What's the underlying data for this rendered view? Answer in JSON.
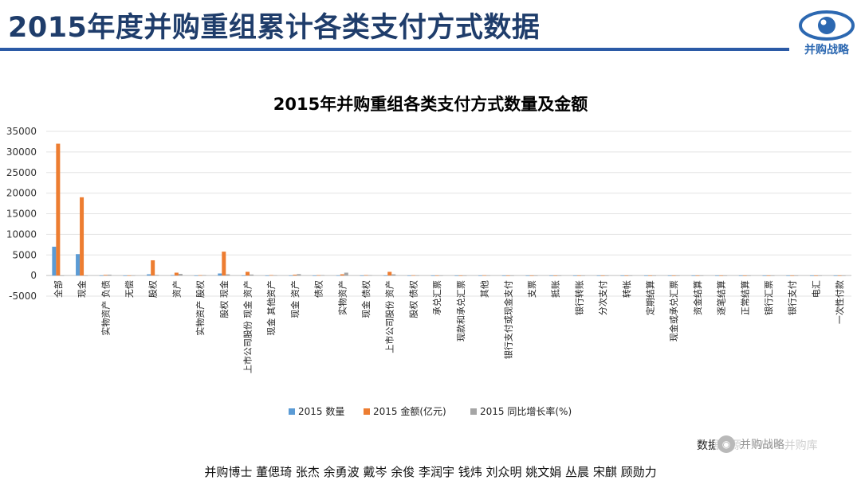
{
  "slide": {
    "title": "2015年度并购重组累计各类支付方式数据",
    "logo_text": "并购战略",
    "source_text": "数据来源：Wind 并购库",
    "authors": "并购博士 董偲琦 张杰 余勇波 戴岑 余俊 李润宇 钱炜 刘众明 姚文娟 丛晨 宋麒 顾勋力",
    "wechat_name": "并购战略"
  },
  "colors": {
    "title": "#1f3d6b",
    "rule": "#2b5aa6",
    "count": "#5b9bd5",
    "amount": "#ed7d31",
    "growth": "#a5a5a5"
  },
  "chart_data": {
    "type": "bar",
    "title": "2015年并购重组各类支付方式数量及金额",
    "xlabel": "",
    "ylabel": "",
    "ylim": [
      -5000,
      35000
    ],
    "yticks": [
      -5000,
      0,
      5000,
      10000,
      15000,
      20000,
      25000,
      30000,
      35000
    ],
    "grid": true,
    "legend_position": "bottom",
    "categories": [
      "全部",
      "现金",
      "实物资产 负债",
      "无偿",
      "股权",
      "资产",
      "实物资产 股权",
      "股权 现金",
      "上市公司股份 现金 资产",
      "现金 其他资产",
      "现金 资产",
      "债权",
      "实物资产",
      "现金 债权",
      "上市公司股份 资产",
      "股权 债权",
      "承兑汇票",
      "现款和承兑汇票",
      "其他",
      "银行支付或现金支付",
      "支票",
      "抵账",
      "银行转账",
      "分次支付",
      "转帐",
      "定期结算",
      "现金或承兑汇票",
      "资金结算",
      "逐笔结算",
      "正常结算",
      "银行汇票",
      "银行支付",
      "电汇",
      "一次性付款"
    ],
    "series": [
      {
        "name": "2015 数量",
        "values": [
          7000,
          5200,
          30,
          20,
          300,
          100,
          20,
          500,
          30,
          20,
          30,
          20,
          40,
          20,
          30,
          20,
          10,
          5,
          20,
          5,
          5,
          5,
          5,
          5,
          5,
          5,
          5,
          5,
          5,
          5,
          5,
          5,
          5,
          5
        ]
      },
      {
        "name": "2015 金额(亿元)",
        "values": [
          32000,
          19000,
          150,
          30,
          3700,
          700,
          80,
          5800,
          900,
          100,
          200,
          80,
          300,
          100,
          900,
          60,
          30,
          10,
          60,
          10,
          5,
          5,
          5,
          5,
          5,
          5,
          5,
          5,
          5,
          5,
          5,
          5,
          5,
          5
        ]
      },
      {
        "name": "2015 同比增长率(%)",
        "values": [
          20,
          30,
          200,
          50,
          150,
          400,
          100,
          300,
          250,
          60,
          350,
          100,
          700,
          80,
          300,
          50,
          30,
          20,
          40,
          10,
          10,
          10,
          10,
          10,
          10,
          10,
          10,
          10,
          10,
          10,
          10,
          10,
          10,
          10
        ]
      }
    ]
  }
}
